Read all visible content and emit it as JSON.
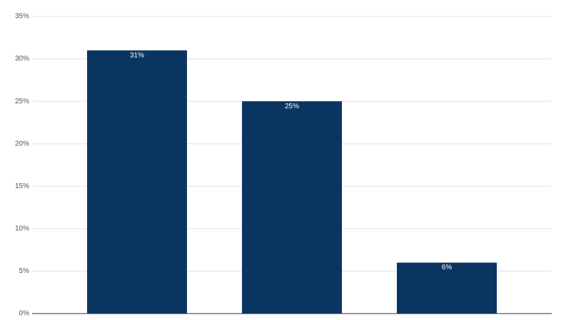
{
  "chart_data": {
    "type": "bar",
    "categories": [
      null,
      null,
      null
    ],
    "values": [
      31,
      25,
      6
    ],
    "value_labels": [
      "31%",
      "25%",
      "6%"
    ],
    "color": "#0b3561",
    "ylim": [
      0,
      35
    ],
    "yticks": [
      {
        "value": 0,
        "label": "0%"
      },
      {
        "value": 5,
        "label": "5%"
      },
      {
        "value": 10,
        "label": "10%"
      },
      {
        "value": 15,
        "label": "15%"
      },
      {
        "value": 20,
        "label": "20%"
      },
      {
        "value": 25,
        "label": "25%"
      },
      {
        "value": 30,
        "label": "30%"
      },
      {
        "value": 35,
        "label": "35%"
      }
    ],
    "grid": true
  }
}
